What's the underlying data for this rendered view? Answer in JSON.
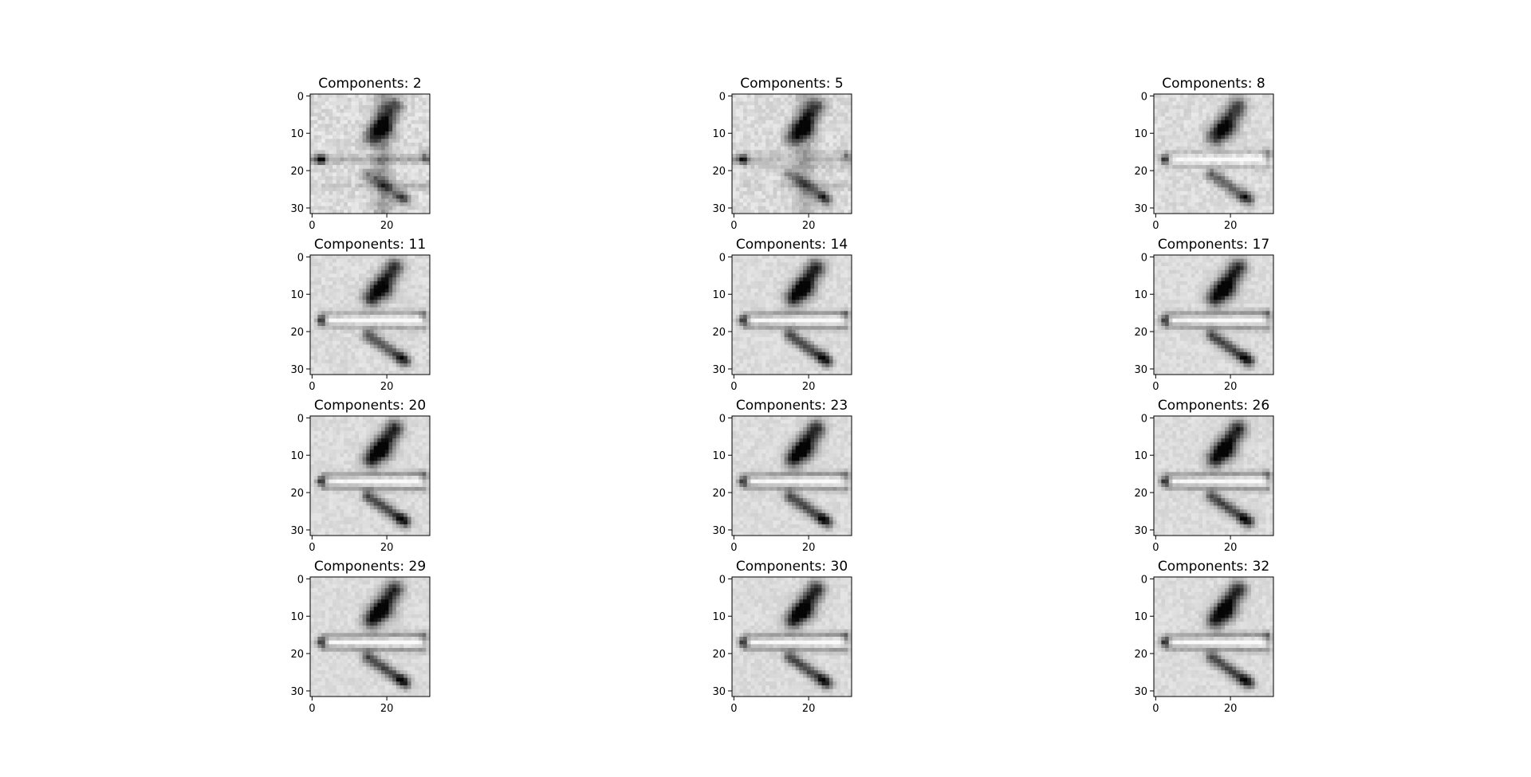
{
  "chart_data": {
    "type": "image-grid",
    "grid": {
      "rows": 4,
      "cols": 3
    },
    "image_size": [
      32,
      32
    ],
    "colormap": "gray",
    "panels": [
      {
        "title": "Components: 2",
        "components": 2
      },
      {
        "title": "Components: 5",
        "components": 5
      },
      {
        "title": "Components: 8",
        "components": 8
      },
      {
        "title": "Components: 11",
        "components": 11
      },
      {
        "title": "Components: 14",
        "components": 14
      },
      {
        "title": "Components: 17",
        "components": 17
      },
      {
        "title": "Components: 20",
        "components": 20
      },
      {
        "title": "Components: 23",
        "components": 23
      },
      {
        "title": "Components: 26",
        "components": 26
      },
      {
        "title": "Components: 29",
        "components": 29
      },
      {
        "title": "Components: 30",
        "components": 30
      },
      {
        "title": "Components: 32",
        "components": 32
      }
    ],
    "xaxis": {
      "range": [
        -0.5,
        31.5
      ],
      "ticks": [
        0,
        20
      ],
      "tick_labels": [
        "0",
        "20"
      ]
    },
    "yaxis": {
      "range": [
        -0.5,
        31.5
      ],
      "ticks": [
        0,
        10,
        20,
        30
      ],
      "tick_labels": [
        "0",
        "10",
        "20",
        "30"
      ],
      "inverted": true
    }
  }
}
